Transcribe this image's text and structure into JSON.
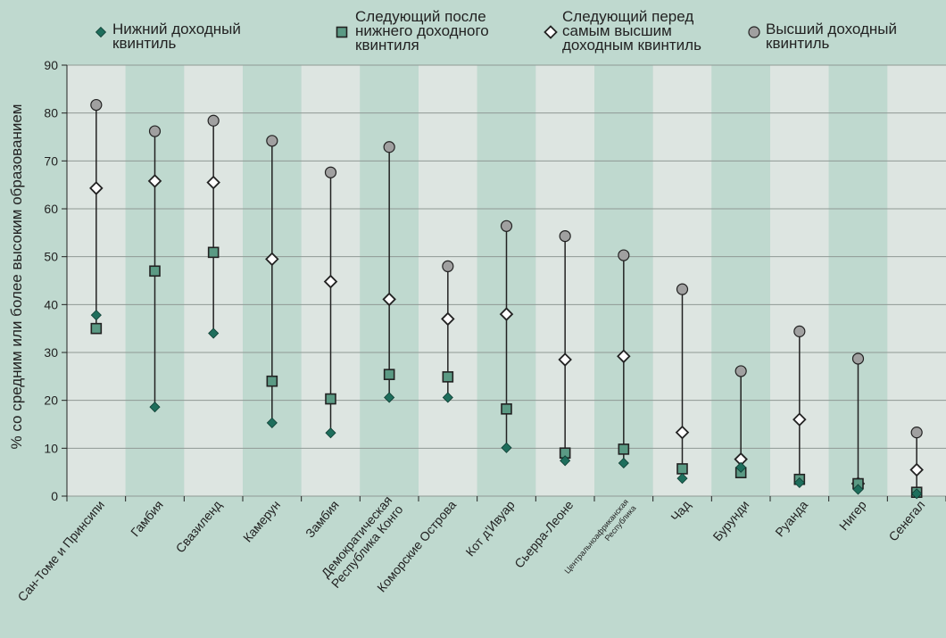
{
  "chart_data": {
    "type": "scatter",
    "ylabel": "% со средним или более высоким образованием",
    "ylim": [
      0,
      90
    ],
    "yticks": [
      0,
      10,
      20,
      30,
      40,
      50,
      60,
      70,
      80,
      90
    ],
    "grid": true,
    "legend_position": "top",
    "categories": [
      "Сан-Томе и Принсипи",
      "Гамбия",
      "Свазиленд",
      "Камерун",
      "Замбия",
      "Демократическая Республика Конго",
      "Коморские Острова",
      "Кот д'Ивуар",
      "Сьерра-Леоне",
      "Центральноафриканская Республика",
      "Чад",
      "Бурунди",
      "Руанда",
      "Нигер",
      "Сенегал"
    ],
    "series": [
      {
        "name": "Нижний доходный квинтиль",
        "marker": "diamond-filled",
        "color": "#1e6e5c",
        "values": [
          37.8,
          18.6,
          34.0,
          15.3,
          13.2,
          20.6,
          20.6,
          10.1,
          7.4,
          6.9,
          3.7,
          6.0,
          2.8,
          1.4,
          0.5
        ]
      },
      {
        "name": "Следующий после нижнего доходного квинтиля",
        "marker": "square",
        "color": "#5b9a84",
        "values": [
          35.0,
          47.0,
          50.9,
          24.0,
          20.3,
          25.4,
          24.9,
          18.2,
          9.0,
          9.8,
          5.7,
          4.9,
          3.5,
          2.6,
          0.8
        ]
      },
      {
        "name": "Следующий перед самым высшим доходным квинтиль",
        "marker": "diamond-open",
        "color": "#ffffff",
        "values": [
          64.3,
          65.8,
          65.5,
          49.5,
          44.8,
          41.1,
          37.0,
          38.0,
          28.5,
          29.2,
          13.3,
          7.7,
          16.0,
          2.6,
          5.5
        ]
      },
      {
        "name": "Высший доходный квинтиль",
        "marker": "circle",
        "color": "#a0a0a0",
        "values": [
          81.7,
          76.2,
          78.4,
          74.2,
          67.6,
          72.9,
          48.0,
          56.4,
          54.3,
          50.3,
          43.2,
          26.1,
          34.4,
          28.7,
          13.3
        ]
      }
    ],
    "legend": [
      {
        "lines": [
          "Нижний доходный",
          "квинтиль"
        ]
      },
      {
        "lines": [
          "Следующий после",
          "нижнего доходного",
          "квинтиля"
        ]
      },
      {
        "lines": [
          "Следующий перед",
          "самым высшим",
          "доходным квинтиль"
        ]
      },
      {
        "lines": [
          "Высший доходный",
          "квинтиль"
        ]
      }
    ],
    "category_label_lines": [
      [
        "Сан-Томе и Принсипи"
      ],
      [
        "Гамбия"
      ],
      [
        "Свазиленд"
      ],
      [
        "Камерун"
      ],
      [
        "Замбия"
      ],
      [
        "Демократическая",
        "Республика Конго"
      ],
      [
        "Коморские Острова"
      ],
      [
        "Кот д'Ивуар"
      ],
      [
        "Сьерра-Леоне"
      ],
      [
        "Центральноафриканская",
        "Республика"
      ],
      [
        "Чад"
      ],
      [
        "Бурунди"
      ],
      [
        "Руанда"
      ],
      [
        "Нигер"
      ],
      [
        "Сенегал"
      ]
    ],
    "colors": {
      "background": "#bfd9cf",
      "band_light": "#dde5e1",
      "band_dark": "#bfd9cf",
      "gridline": "#8f9994",
      "connector": "#222222"
    }
  }
}
